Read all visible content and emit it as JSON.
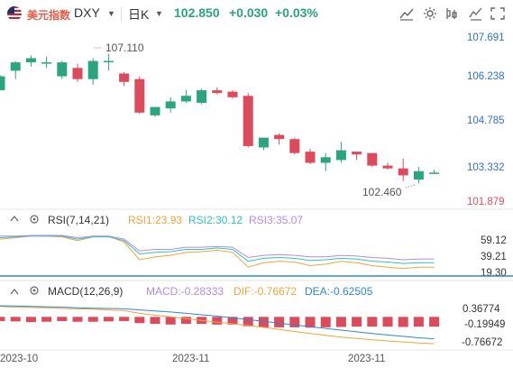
{
  "header": {
    "symbol_name": "美元指数",
    "symbol_code": "DXY",
    "timeframe": "日K",
    "price": "102.850",
    "change": "+0.030",
    "change_pct": "+0.03%"
  },
  "colors": {
    "up": "#2aa57c",
    "down": "#dd4a5b",
    "rsi1": "#f2a33d",
    "rsi2": "#2fbfc9",
    "rsi3": "#b18ce6",
    "macd_line": "#f2a33d",
    "signal_line": "#2f87d6",
    "baseline": "#2f87d6"
  },
  "chart_data": [
    {
      "type": "candlestick",
      "title": "",
      "y_ticks": [
        "107.691",
        "106.238",
        "104.785",
        "103.332",
        "101.879"
      ],
      "ylim": [
        101.6,
        108.0
      ],
      "x_ticks": [
        "2023-10",
        "2023-11",
        "2023-11"
      ],
      "annotations": {
        "high": "107.110",
        "low": "102.460"
      },
      "candles": [
        {
          "o": 105.8,
          "h": 106.35,
          "l": 105.8,
          "c": 106.3
        },
        {
          "o": 106.5,
          "h": 106.85,
          "l": 106.2,
          "c": 106.8
        },
        {
          "o": 106.8,
          "h": 107.05,
          "l": 106.65,
          "c": 106.95
        },
        {
          "o": 106.8,
          "h": 107.0,
          "l": 106.6,
          "c": 106.8
        },
        {
          "o": 106.3,
          "h": 106.85,
          "l": 106.2,
          "c": 106.8
        },
        {
          "o": 106.6,
          "h": 106.75,
          "l": 106.1,
          "c": 106.2
        },
        {
          "o": 106.2,
          "h": 106.95,
          "l": 106.0,
          "c": 106.85
        },
        {
          "o": 106.85,
          "h": 107.11,
          "l": 106.5,
          "c": 106.85
        },
        {
          "o": 106.4,
          "h": 106.45,
          "l": 105.95,
          "c": 106.1
        },
        {
          "o": 106.2,
          "h": 106.3,
          "l": 104.95,
          "c": 105.0
        },
        {
          "o": 104.9,
          "h": 105.2,
          "l": 104.85,
          "c": 105.2
        },
        {
          "o": 105.15,
          "h": 105.55,
          "l": 105.0,
          "c": 105.4
        },
        {
          "o": 105.4,
          "h": 105.8,
          "l": 105.35,
          "c": 105.6
        },
        {
          "o": 105.35,
          "h": 105.85,
          "l": 105.3,
          "c": 105.8
        },
        {
          "o": 105.8,
          "h": 105.9,
          "l": 105.65,
          "c": 105.7
        },
        {
          "o": 105.75,
          "h": 105.8,
          "l": 105.5,
          "c": 105.55
        },
        {
          "o": 105.6,
          "h": 105.7,
          "l": 103.75,
          "c": 103.8
        },
        {
          "o": 103.75,
          "h": 104.1,
          "l": 103.65,
          "c": 104.1
        },
        {
          "o": 104.2,
          "h": 104.25,
          "l": 103.85,
          "c": 104.05
        },
        {
          "o": 104.05,
          "h": 104.1,
          "l": 103.5,
          "c": 103.55
        },
        {
          "o": 103.6,
          "h": 103.7,
          "l": 103.15,
          "c": 103.2
        },
        {
          "o": 103.2,
          "h": 103.55,
          "l": 102.9,
          "c": 103.4
        },
        {
          "o": 103.3,
          "h": 103.95,
          "l": 103.2,
          "c": 103.65
        },
        {
          "o": 103.6,
          "h": 103.6,
          "l": 103.3,
          "c": 103.5
        },
        {
          "o": 103.55,
          "h": 103.55,
          "l": 103.05,
          "c": 103.1
        },
        {
          "o": 103.1,
          "h": 103.2,
          "l": 102.95,
          "c": 103.0
        },
        {
          "o": 103.0,
          "h": 103.35,
          "l": 102.55,
          "c": 102.75
        },
        {
          "o": 102.6,
          "h": 103.05,
          "l": 102.46,
          "c": 102.9
        },
        {
          "o": 102.82,
          "h": 102.95,
          "l": 102.8,
          "c": 102.85
        }
      ]
    },
    {
      "type": "line",
      "title": "RSI(7,14,21)",
      "y_ticks": [
        "59.12",
        "39.21",
        "19.30"
      ],
      "ylim": [
        12,
        78
      ],
      "series": [
        {
          "name": "RSI1:23.93",
          "values": [
            62,
            64,
            66,
            66,
            65,
            60,
            65,
            66,
            58,
            34,
            38,
            40,
            44,
            45,
            47,
            44,
            24,
            30,
            32,
            31,
            26,
            28,
            32,
            30,
            26,
            24,
            22,
            24,
            23.9
          ]
        },
        {
          "name": "RSI2:30.12",
          "values": [
            64,
            65,
            66,
            66,
            66,
            62,
            65,
            65,
            60,
            42,
            44,
            45,
            48,
            48,
            50,
            48,
            32,
            36,
            37,
            36,
            33,
            34,
            36,
            35,
            32,
            31,
            29,
            30,
            30.1
          ]
        },
        {
          "name": "RSI3:35.07",
          "values": [
            66,
            66,
            67,
            67,
            67,
            64,
            66,
            66,
            62,
            46,
            48,
            48,
            51,
            51,
            52,
            51,
            37,
            40,
            41,
            40,
            38,
            38,
            40,
            39,
            37,
            36,
            34,
            35,
            35.1
          ]
        }
      ]
    },
    {
      "type": "bar+line",
      "title": "MACD(12,26,9)",
      "y_ticks": [
        "0.36774",
        "-0.19949",
        "-0.76672"
      ],
      "ylim": [
        -0.95,
        0.5
      ],
      "histogram": [
        -0.12,
        -0.13,
        -0.15,
        -0.14,
        -0.12,
        -0.14,
        -0.14,
        -0.13,
        -0.12,
        -0.18,
        -0.2,
        -0.22,
        -0.2,
        -0.2,
        -0.22,
        -0.22,
        -0.27,
        -0.3,
        -0.3,
        -0.3,
        -0.31,
        -0.3,
        -0.29,
        -0.28,
        -0.28,
        -0.28,
        -0.29,
        -0.28,
        -0.28
      ],
      "series": [
        {
          "name": "DIF:-0.76672",
          "values": [
            0.3,
            0.28,
            0.27,
            0.26,
            0.24,
            0.23,
            0.22,
            0.2,
            0.18,
            0.1,
            0.05,
            0.0,
            -0.05,
            -0.1,
            -0.15,
            -0.2,
            -0.25,
            -0.3,
            -0.36,
            -0.42,
            -0.48,
            -0.53,
            -0.58,
            -0.62,
            -0.66,
            -0.69,
            -0.72,
            -0.75,
            -0.77
          ]
        },
        {
          "name": "DEA:-0.62505",
          "values": [
            0.32,
            0.31,
            0.3,
            0.29,
            0.28,
            0.26,
            0.25,
            0.24,
            0.23,
            0.2,
            0.17,
            0.14,
            0.1,
            0.06,
            0.02,
            -0.03,
            -0.08,
            -0.13,
            -0.18,
            -0.23,
            -0.28,
            -0.33,
            -0.38,
            -0.43,
            -0.48,
            -0.52,
            -0.56,
            -0.6,
            -0.63
          ]
        }
      ],
      "header_values": {
        "macd": "MACD:-0.28333"
      }
    }
  ]
}
